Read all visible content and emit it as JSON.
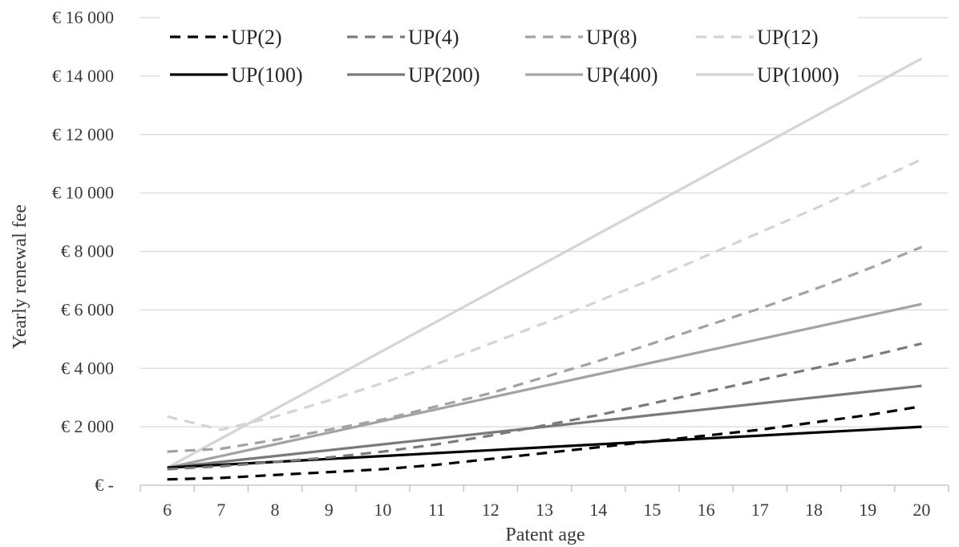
{
  "chart_data": {
    "type": "line",
    "xlabel": "Patent age",
    "ylabel": "Yearly renewal fee",
    "x": [
      6,
      7,
      8,
      9,
      10,
      11,
      12,
      13,
      14,
      15,
      16,
      17,
      18,
      19,
      20
    ],
    "ylim": [
      0,
      16000
    ],
    "y_ticks": [
      0,
      2000,
      4000,
      6000,
      8000,
      10000,
      12000,
      14000,
      16000
    ],
    "y_tick_labels": [
      "€ -",
      "€ 2 000",
      "€ 4 000",
      "€ 6 000",
      "€ 8 000",
      "€ 10 000",
      "€ 12 000",
      "€ 14 000",
      "€ 16 000"
    ],
    "grid": true,
    "legend_position": "top",
    "series": [
      {
        "name": "UP(2)",
        "style": "dashed",
        "color": "#000000",
        "values": [
          200,
          250,
          350,
          450,
          550,
          700,
          900,
          1100,
          1300,
          1500,
          1700,
          1900,
          2150,
          2400,
          2700
        ]
      },
      {
        "name": "UP(4)",
        "style": "dashed",
        "color": "#7a7a7a",
        "values": [
          550,
          650,
          800,
          950,
          1150,
          1400,
          1700,
          2050,
          2400,
          2800,
          3200,
          3600,
          4000,
          4400,
          4850
        ]
      },
      {
        "name": "UP(8)",
        "style": "dashed",
        "color": "#a3a3a3",
        "values": [
          1150,
          1250,
          1550,
          1900,
          2250,
          2700,
          3150,
          3700,
          4250,
          4850,
          5450,
          6050,
          6700,
          7400,
          8150
        ]
      },
      {
        "name": "UP(12)",
        "style": "dashed",
        "color": "#d4d4d4",
        "values": [
          2350,
          1900,
          2350,
          2900,
          3500,
          4150,
          4850,
          5550,
          6300,
          7050,
          7850,
          8650,
          9450,
          10300,
          11150
        ]
      },
      {
        "name": "UP(100)",
        "style": "solid",
        "color": "#000000",
        "values": [
          600,
          700,
          800,
          900,
          1000,
          1100,
          1200,
          1300,
          1400,
          1500,
          1600,
          1700,
          1800,
          1900,
          2000
        ]
      },
      {
        "name": "UP(200)",
        "style": "solid",
        "color": "#7a7a7a",
        "values": [
          600,
          800,
          1000,
          1200,
          1400,
          1600,
          1800,
          2000,
          2200,
          2400,
          2600,
          2800,
          3000,
          3200,
          3400
        ]
      },
      {
        "name": "UP(400)",
        "style": "solid",
        "color": "#a3a3a3",
        "values": [
          600,
          1000,
          1400,
          1800,
          2200,
          2600,
          3000,
          3400,
          3800,
          4200,
          4600,
          5000,
          5400,
          5800,
          6200
        ]
      },
      {
        "name": "UP(1000)",
        "style": "solid",
        "color": "#d4d4d4",
        "values": [
          600,
          1600,
          2600,
          3600,
          4600,
          5600,
          6600,
          7600,
          8600,
          9600,
          10600,
          11600,
          12600,
          13600,
          14600
        ]
      }
    ]
  }
}
